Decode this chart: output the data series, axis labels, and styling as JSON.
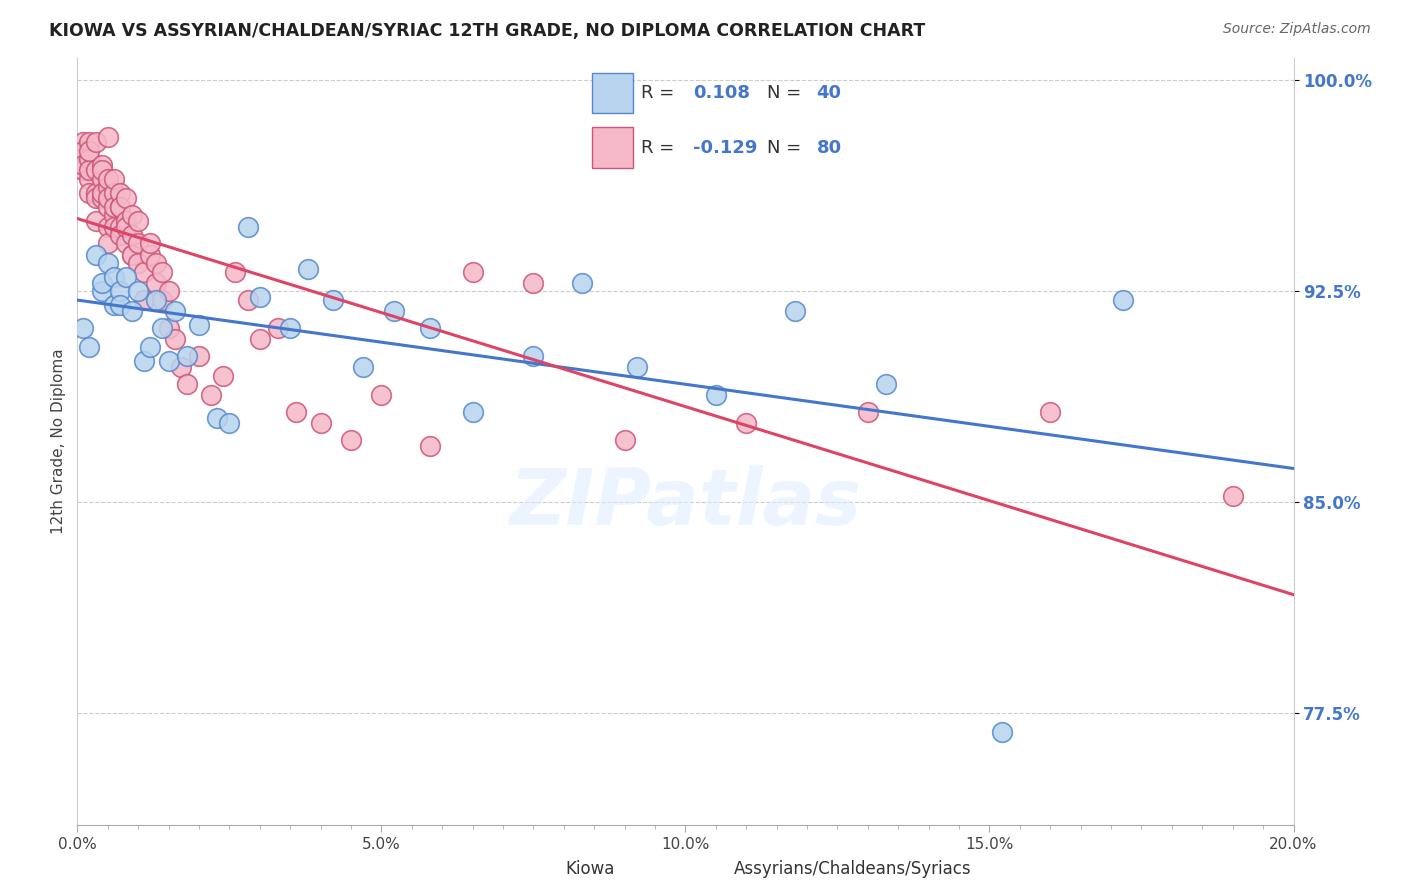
{
  "title": "KIOWA VS ASSYRIAN/CHALDEAN/SYRIAC 12TH GRADE, NO DIPLOMA CORRELATION CHART",
  "source": "Source: ZipAtlas.com",
  "ylabel": "12th Grade, No Diploma",
  "xlim": [
    0.0,
    0.2
  ],
  "ylim": [
    0.735,
    1.008
  ],
  "xtick_labels": [
    "0.0%",
    "",
    "",
    "",
    "",
    "",
    "",
    "",
    "",
    "",
    "5.0%",
    "",
    "",
    "",
    "",
    "",
    "",
    "",
    "",
    "",
    "10.0%",
    "",
    "",
    "",
    "",
    "",
    "",
    "",
    "",
    "",
    "15.0%",
    "",
    "",
    "",
    "",
    "",
    "",
    "",
    "",
    "",
    "20.0%"
  ],
  "xtick_vals": [
    0.0,
    0.005,
    0.01,
    0.015,
    0.02,
    0.025,
    0.03,
    0.035,
    0.04,
    0.045,
    0.05,
    0.055,
    0.06,
    0.065,
    0.07,
    0.075,
    0.08,
    0.085,
    0.09,
    0.095,
    0.1,
    0.105,
    0.11,
    0.115,
    0.12,
    0.125,
    0.13,
    0.135,
    0.14,
    0.145,
    0.15,
    0.155,
    0.16,
    0.165,
    0.17,
    0.175,
    0.18,
    0.185,
    0.19,
    0.195,
    0.2
  ],
  "ytick_labels": [
    "77.5%",
    "85.0%",
    "92.5%",
    "100.0%"
  ],
  "ytick_vals": [
    0.775,
    0.85,
    0.925,
    1.0
  ],
  "r_blue": 0.108,
  "n_blue": 40,
  "r_pink": -0.129,
  "n_pink": 80,
  "blue_fill": "#b8d4ee",
  "pink_fill": "#f5b8c8",
  "blue_edge": "#5588cc",
  "pink_edge": "#cc5577",
  "blue_line": "#4477cc",
  "pink_line": "#dd4466",
  "watermark": "ZIPatlas",
  "blue_x": [
    0.001,
    0.002,
    0.003,
    0.004,
    0.004,
    0.005,
    0.006,
    0.006,
    0.007,
    0.007,
    0.008,
    0.009,
    0.01,
    0.011,
    0.012,
    0.013,
    0.014,
    0.015,
    0.016,
    0.018,
    0.02,
    0.023,
    0.025,
    0.028,
    0.03,
    0.035,
    0.038,
    0.042,
    0.047,
    0.052,
    0.058,
    0.065,
    0.075,
    0.083,
    0.092,
    0.105,
    0.118,
    0.133,
    0.152,
    0.172
  ],
  "blue_y": [
    0.912,
    0.905,
    0.938,
    0.925,
    0.928,
    0.935,
    0.92,
    0.93,
    0.925,
    0.92,
    0.93,
    0.918,
    0.925,
    0.9,
    0.905,
    0.922,
    0.912,
    0.9,
    0.918,
    0.902,
    0.913,
    0.88,
    0.878,
    0.948,
    0.923,
    0.912,
    0.933,
    0.922,
    0.898,
    0.918,
    0.912,
    0.882,
    0.902,
    0.928,
    0.898,
    0.888,
    0.918,
    0.892,
    0.768,
    0.922
  ],
  "pink_x": [
    0.001,
    0.001,
    0.001,
    0.001,
    0.002,
    0.002,
    0.002,
    0.002,
    0.002,
    0.002,
    0.003,
    0.003,
    0.003,
    0.003,
    0.003,
    0.004,
    0.004,
    0.004,
    0.004,
    0.004,
    0.005,
    0.005,
    0.005,
    0.005,
    0.005,
    0.005,
    0.005,
    0.006,
    0.006,
    0.006,
    0.006,
    0.006,
    0.007,
    0.007,
    0.007,
    0.007,
    0.007,
    0.008,
    0.008,
    0.008,
    0.008,
    0.009,
    0.009,
    0.009,
    0.009,
    0.01,
    0.01,
    0.01,
    0.011,
    0.011,
    0.012,
    0.012,
    0.013,
    0.013,
    0.014,
    0.014,
    0.015,
    0.015,
    0.016,
    0.017,
    0.018,
    0.02,
    0.022,
    0.024,
    0.026,
    0.028,
    0.03,
    0.033,
    0.036,
    0.04,
    0.045,
    0.05,
    0.058,
    0.065,
    0.075,
    0.09,
    0.11,
    0.13,
    0.16,
    0.19
  ],
  "pink_y": [
    0.968,
    0.978,
    0.975,
    0.97,
    0.978,
    0.965,
    0.972,
    0.96,
    0.968,
    0.975,
    0.95,
    0.978,
    0.96,
    0.968,
    0.958,
    0.965,
    0.958,
    0.97,
    0.96,
    0.968,
    0.955,
    0.948,
    0.962,
    0.98,
    0.942,
    0.965,
    0.958,
    0.952,
    0.96,
    0.948,
    0.965,
    0.955,
    0.955,
    0.96,
    0.948,
    0.955,
    0.945,
    0.95,
    0.958,
    0.942,
    0.948,
    0.938,
    0.945,
    0.952,
    0.938,
    0.935,
    0.942,
    0.95,
    0.932,
    0.922,
    0.938,
    0.942,
    0.928,
    0.935,
    0.922,
    0.932,
    0.925,
    0.912,
    0.908,
    0.898,
    0.892,
    0.902,
    0.888,
    0.895,
    0.932,
    0.922,
    0.908,
    0.912,
    0.882,
    0.878,
    0.872,
    0.888,
    0.87,
    0.932,
    0.928,
    0.872,
    0.878,
    0.882,
    0.882,
    0.852
  ]
}
